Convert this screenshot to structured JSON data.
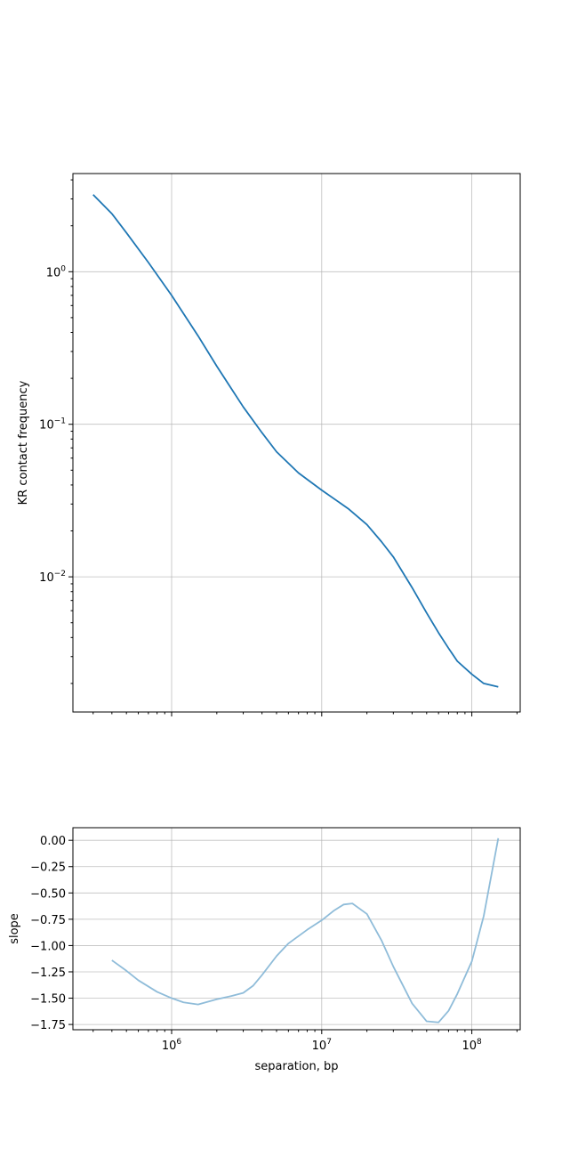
{
  "colors": {
    "main_line": "#1f77b4",
    "slope_line": "#8fbcd9",
    "grid": "#b0b0b0"
  },
  "chart_data": [
    {
      "type": "line",
      "xscale": "log",
      "yscale": "log",
      "xlabel": "",
      "ylabel": "KR contact frequency",
      "xlim": [
        220000,
        210000000
      ],
      "ylim": [
        0.0013,
        4.4
      ],
      "grid": true,
      "tick_labels_x_visible": false,
      "y_ticks": [
        {
          "value": 1,
          "base": "10",
          "exp": "0"
        },
        {
          "value": 0.1,
          "base": "10",
          "exp": "−1"
        },
        {
          "value": 0.01,
          "base": "10",
          "exp": "−2"
        }
      ],
      "x": [
        300000,
        400000,
        500000,
        700000,
        1000000,
        1500000,
        2000000,
        3000000,
        4000000,
        5000000,
        7000000,
        10000000,
        15000000,
        20000000,
        25000000,
        30000000,
        40000000,
        50000000,
        60000000,
        70000000,
        80000000,
        100000000,
        120000000,
        150000000
      ],
      "y": [
        3.2,
        2.4,
        1.8,
        1.15,
        0.7,
        0.38,
        0.24,
        0.13,
        0.088,
        0.066,
        0.048,
        0.037,
        0.028,
        0.022,
        0.017,
        0.0135,
        0.0085,
        0.0058,
        0.0043,
        0.0034,
        0.0028,
        0.0023,
        0.002,
        0.0019
      ]
    },
    {
      "type": "line",
      "xscale": "log",
      "yscale": "linear",
      "xlabel": "separation, bp",
      "ylabel": "slope",
      "xlim": [
        220000,
        210000000
      ],
      "ylim": [
        -1.8,
        0.12
      ],
      "grid": true,
      "x_ticks": [
        {
          "value": 1000000,
          "base": "10",
          "exp": "6"
        },
        {
          "value": 10000000,
          "base": "10",
          "exp": "7"
        },
        {
          "value": 100000000,
          "base": "10",
          "exp": "8"
        }
      ],
      "y_ticks": [
        "0.00",
        "−0.25",
        "−0.50",
        "−0.75",
        "−1.00",
        "−1.25",
        "−1.50",
        "−1.75"
      ],
      "y_tick_values": [
        0,
        -0.25,
        -0.5,
        -0.75,
        -1.0,
        -1.25,
        -1.5,
        -1.75
      ],
      "x": [
        400000,
        500000,
        600000,
        800000,
        1000000,
        1200000,
        1500000,
        2000000,
        2500000,
        3000000,
        3500000,
        4000000,
        5000000,
        6000000,
        8000000,
        10000000,
        12000000,
        14000000,
        16000000,
        20000000,
        25000000,
        30000000,
        40000000,
        50000000,
        60000000,
        70000000,
        80000000,
        100000000,
        120000000,
        150000000
      ],
      "y": [
        -1.14,
        -1.24,
        -1.33,
        -1.44,
        -1.5,
        -1.54,
        -1.56,
        -1.51,
        -1.48,
        -1.45,
        -1.38,
        -1.28,
        -1.1,
        -0.98,
        -0.85,
        -0.76,
        -0.67,
        -0.61,
        -0.6,
        -0.7,
        -0.95,
        -1.2,
        -1.55,
        -1.72,
        -1.73,
        -1.62,
        -1.46,
        -1.15,
        -0.72,
        0.02
      ]
    }
  ]
}
